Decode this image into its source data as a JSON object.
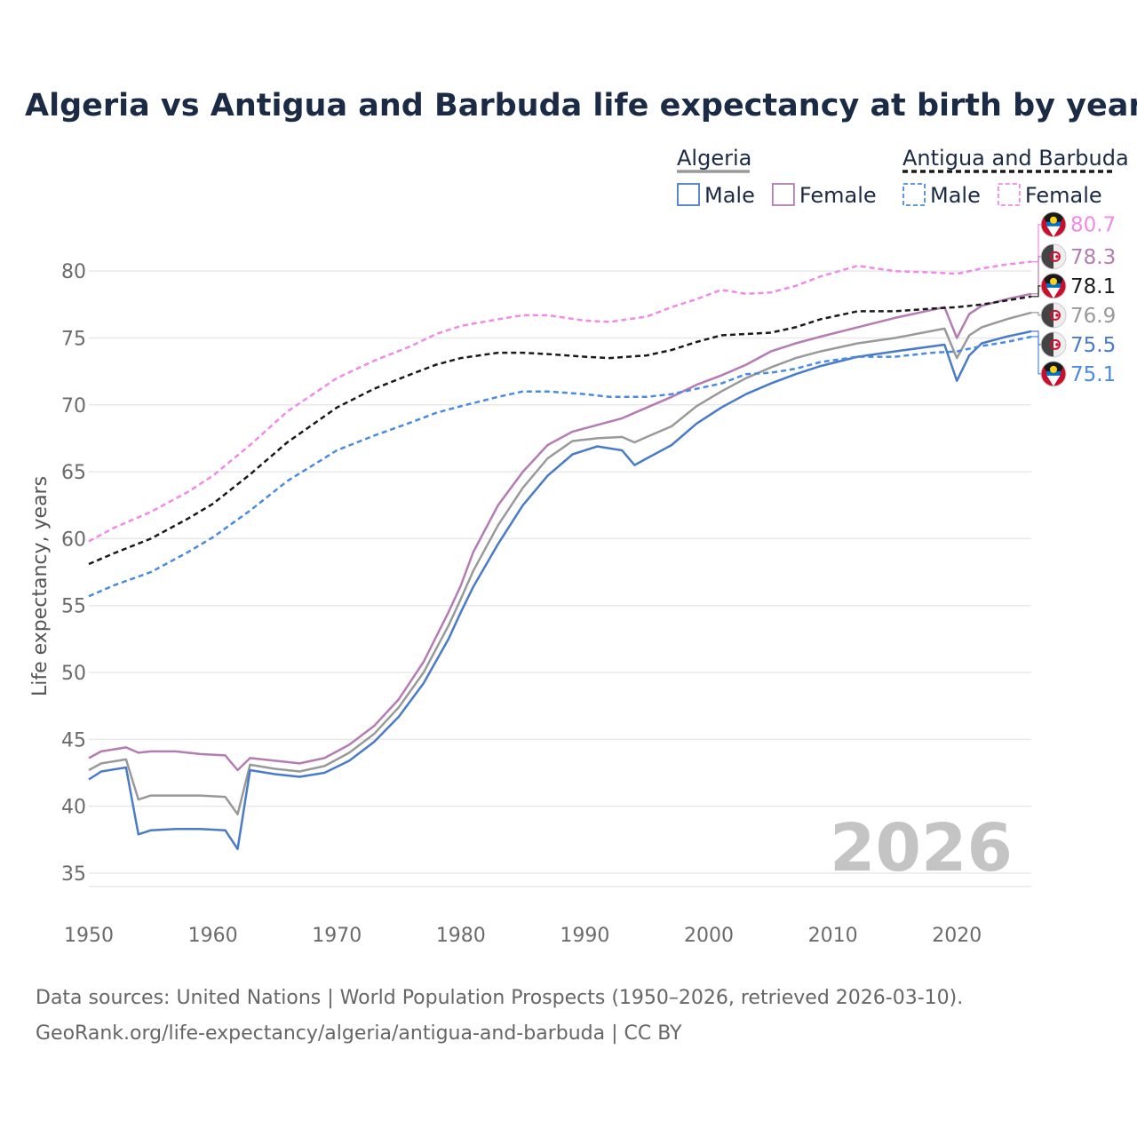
{
  "chart_data": {
    "type": "line",
    "title": "Algeria vs Antigua and Barbuda life expectancy at birth by year",
    "ylabel": "Life expectancy, years",
    "xlabel": "",
    "xlim": [
      1950,
      2026
    ],
    "ylim": [
      34,
      83
    ],
    "x_ticks": [
      1950,
      1960,
      1970,
      1980,
      1990,
      2000,
      2010,
      2020
    ],
    "y_ticks": [
      35,
      40,
      45,
      50,
      55,
      60,
      65,
      70,
      75,
      80
    ],
    "grid": true,
    "year_watermark": "2026",
    "legend": {
      "position": "top-right",
      "groups": [
        {
          "name": "Algeria",
          "color": "#999999",
          "dash": "solid",
          "items": [
            {
              "label": "Male",
              "color": "#4a7bc8",
              "dash": "solid"
            },
            {
              "label": "Female",
              "color": "#b57bb3",
              "dash": "solid"
            }
          ]
        },
        {
          "name": "Antigua and Barbuda",
          "color": "#1a1a1a",
          "dash": "dashed",
          "items": [
            {
              "label": "Male",
              "color": "#4a8ae0",
              "dash": "dashed"
            },
            {
              "label": "Female",
              "color": "#f08ae6",
              "dash": "dashed"
            }
          ]
        }
      ]
    },
    "series": [
      {
        "id": "ag-female",
        "name": "Antigua and Barbuda Female",
        "color": "#f08ae6",
        "dash": "dashed",
        "end_label": "80.7",
        "flag": "antigua",
        "points": [
          [
            1950,
            59.8
          ],
          [
            1952,
            60.8
          ],
          [
            1955,
            62.0
          ],
          [
            1958,
            63.5
          ],
          [
            1960,
            64.7
          ],
          [
            1963,
            67.0
          ],
          [
            1966,
            69.5
          ],
          [
            1970,
            72.0
          ],
          [
            1973,
            73.3
          ],
          [
            1976,
            74.4
          ],
          [
            1978,
            75.3
          ],
          [
            1980,
            75.9
          ],
          [
            1983,
            76.4
          ],
          [
            1985,
            76.7
          ],
          [
            1987,
            76.7
          ],
          [
            1990,
            76.3
          ],
          [
            1992,
            76.2
          ],
          [
            1995,
            76.6
          ],
          [
            1997,
            77.3
          ],
          [
            1999,
            77.9
          ],
          [
            2001,
            78.6
          ],
          [
            2003,
            78.3
          ],
          [
            2005,
            78.4
          ],
          [
            2007,
            78.9
          ],
          [
            2009,
            79.6
          ],
          [
            2012,
            80.4
          ],
          [
            2015,
            80.0
          ],
          [
            2018,
            79.9
          ],
          [
            2020,
            79.8
          ],
          [
            2022,
            80.2
          ],
          [
            2024,
            80.5
          ],
          [
            2026,
            80.7
          ]
        ]
      },
      {
        "id": "dz-female",
        "name": "Algeria Female",
        "color": "#b57bb3",
        "dash": "solid",
        "end_label": "78.3",
        "flag": "algeria",
        "points": [
          [
            1950,
            43.6
          ],
          [
            1951,
            44.1
          ],
          [
            1953,
            44.4
          ],
          [
            1954,
            44.0
          ],
          [
            1955,
            44.1
          ],
          [
            1957,
            44.1
          ],
          [
            1959,
            43.9
          ],
          [
            1961,
            43.8
          ],
          [
            1962,
            42.7
          ],
          [
            1963,
            43.6
          ],
          [
            1965,
            43.4
          ],
          [
            1967,
            43.2
          ],
          [
            1969,
            43.6
          ],
          [
            1971,
            44.6
          ],
          [
            1973,
            46.0
          ],
          [
            1975,
            48.0
          ],
          [
            1977,
            50.8
          ],
          [
            1979,
            54.5
          ],
          [
            1980,
            56.5
          ],
          [
            1981,
            59.0
          ],
          [
            1983,
            62.5
          ],
          [
            1985,
            65.0
          ],
          [
            1987,
            67.0
          ],
          [
            1989,
            68.0
          ],
          [
            1991,
            68.5
          ],
          [
            1993,
            69.0
          ],
          [
            1995,
            69.8
          ],
          [
            1997,
            70.6
          ],
          [
            1999,
            71.5
          ],
          [
            2001,
            72.2
          ],
          [
            2003,
            73.0
          ],
          [
            2005,
            74.0
          ],
          [
            2007,
            74.6
          ],
          [
            2009,
            75.1
          ],
          [
            2012,
            75.8
          ],
          [
            2015,
            76.5
          ],
          [
            2019,
            77.3
          ],
          [
            2020,
            75.0
          ],
          [
            2021,
            76.8
          ],
          [
            2022,
            77.4
          ],
          [
            2024,
            77.9
          ],
          [
            2026,
            78.3
          ]
        ]
      },
      {
        "id": "ag-total",
        "name": "Antigua and Barbuda Total",
        "color": "#1a1a1a",
        "dash": "dashed",
        "end_label": "78.1",
        "flag": "antigua",
        "points": [
          [
            1950,
            58.1
          ],
          [
            1952,
            58.9
          ],
          [
            1955,
            60.0
          ],
          [
            1958,
            61.5
          ],
          [
            1960,
            62.6
          ],
          [
            1963,
            64.8
          ],
          [
            1966,
            67.2
          ],
          [
            1970,
            69.8
          ],
          [
            1973,
            71.2
          ],
          [
            1976,
            72.3
          ],
          [
            1978,
            73.0
          ],
          [
            1980,
            73.5
          ],
          [
            1983,
            73.9
          ],
          [
            1985,
            73.9
          ],
          [
            1987,
            73.8
          ],
          [
            1990,
            73.6
          ],
          [
            1992,
            73.5
          ],
          [
            1995,
            73.7
          ],
          [
            1997,
            74.1
          ],
          [
            1999,
            74.7
          ],
          [
            2001,
            75.2
          ],
          [
            2003,
            75.3
          ],
          [
            2005,
            75.4
          ],
          [
            2007,
            75.8
          ],
          [
            2009,
            76.4
          ],
          [
            2012,
            77.0
          ],
          [
            2015,
            77.0
          ],
          [
            2018,
            77.2
          ],
          [
            2020,
            77.3
          ],
          [
            2022,
            77.5
          ],
          [
            2024,
            77.8
          ],
          [
            2026,
            78.1
          ]
        ]
      },
      {
        "id": "dz-total",
        "name": "Algeria Total",
        "color": "#999999",
        "dash": "solid",
        "end_label": "76.9",
        "flag": "algeria",
        "points": [
          [
            1950,
            42.7
          ],
          [
            1951,
            43.2
          ],
          [
            1953,
            43.5
          ],
          [
            1954,
            40.5
          ],
          [
            1955,
            40.8
          ],
          [
            1957,
            40.8
          ],
          [
            1959,
            40.8
          ],
          [
            1961,
            40.7
          ],
          [
            1962,
            39.4
          ],
          [
            1963,
            43.1
          ],
          [
            1965,
            42.8
          ],
          [
            1967,
            42.6
          ],
          [
            1969,
            43.0
          ],
          [
            1971,
            44.0
          ],
          [
            1973,
            45.4
          ],
          [
            1975,
            47.4
          ],
          [
            1977,
            50.0
          ],
          [
            1979,
            53.5
          ],
          [
            1980,
            55.5
          ],
          [
            1981,
            57.6
          ],
          [
            1983,
            61.0
          ],
          [
            1985,
            63.8
          ],
          [
            1987,
            66.0
          ],
          [
            1989,
            67.3
          ],
          [
            1991,
            67.5
          ],
          [
            1993,
            67.6
          ],
          [
            1994,
            67.2
          ],
          [
            1995,
            67.6
          ],
          [
            1997,
            68.4
          ],
          [
            1999,
            69.9
          ],
          [
            2001,
            71.0
          ],
          [
            2003,
            72.0
          ],
          [
            2005,
            72.8
          ],
          [
            2007,
            73.5
          ],
          [
            2009,
            74.0
          ],
          [
            2012,
            74.6
          ],
          [
            2015,
            75.0
          ],
          [
            2019,
            75.7
          ],
          [
            2020,
            73.5
          ],
          [
            2021,
            75.2
          ],
          [
            2022,
            75.8
          ],
          [
            2024,
            76.4
          ],
          [
            2026,
            76.9
          ]
        ]
      },
      {
        "id": "dz-male",
        "name": "Algeria Male",
        "color": "#4a7bc8",
        "dash": "solid",
        "end_label": "75.5",
        "flag": "algeria",
        "points": [
          [
            1950,
            42.0
          ],
          [
            1951,
            42.6
          ],
          [
            1953,
            42.9
          ],
          [
            1954,
            37.9
          ],
          [
            1955,
            38.2
          ],
          [
            1957,
            38.3
          ],
          [
            1959,
            38.3
          ],
          [
            1961,
            38.2
          ],
          [
            1962,
            36.8
          ],
          [
            1963,
            42.7
          ],
          [
            1965,
            42.4
          ],
          [
            1967,
            42.2
          ],
          [
            1969,
            42.5
          ],
          [
            1971,
            43.4
          ],
          [
            1973,
            44.8
          ],
          [
            1975,
            46.7
          ],
          [
            1977,
            49.2
          ],
          [
            1979,
            52.5
          ],
          [
            1980,
            54.5
          ],
          [
            1981,
            56.4
          ],
          [
            1983,
            59.6
          ],
          [
            1985,
            62.5
          ],
          [
            1987,
            64.7
          ],
          [
            1989,
            66.3
          ],
          [
            1991,
            66.9
          ],
          [
            1993,
            66.6
          ],
          [
            1994,
            65.5
          ],
          [
            1995,
            66.0
          ],
          [
            1997,
            67.0
          ],
          [
            1999,
            68.6
          ],
          [
            2001,
            69.8
          ],
          [
            2003,
            70.8
          ],
          [
            2005,
            71.6
          ],
          [
            2007,
            72.3
          ],
          [
            2009,
            72.9
          ],
          [
            2012,
            73.6
          ],
          [
            2015,
            74.0
          ],
          [
            2019,
            74.5
          ],
          [
            2020,
            71.8
          ],
          [
            2021,
            73.7
          ],
          [
            2022,
            74.6
          ],
          [
            2024,
            75.1
          ],
          [
            2026,
            75.5
          ]
        ]
      },
      {
        "id": "ag-male",
        "name": "Antigua and Barbuda Male",
        "color": "#4a8ae0",
        "dash": "dashed",
        "end_label": "75.1",
        "flag": "antigua",
        "points": [
          [
            1950,
            55.7
          ],
          [
            1952,
            56.5
          ],
          [
            1955,
            57.5
          ],
          [
            1958,
            59.0
          ],
          [
            1960,
            60.1
          ],
          [
            1963,
            62.1
          ],
          [
            1966,
            64.3
          ],
          [
            1970,
            66.6
          ],
          [
            1973,
            67.7
          ],
          [
            1976,
            68.7
          ],
          [
            1978,
            69.4
          ],
          [
            1980,
            69.9
          ],
          [
            1983,
            70.6
          ],
          [
            1985,
            71.0
          ],
          [
            1987,
            71.0
          ],
          [
            1990,
            70.8
          ],
          [
            1992,
            70.6
          ],
          [
            1995,
            70.6
          ],
          [
            1997,
            70.8
          ],
          [
            1999,
            71.2
          ],
          [
            2001,
            71.6
          ],
          [
            2003,
            72.3
          ],
          [
            2005,
            72.4
          ],
          [
            2007,
            72.7
          ],
          [
            2009,
            73.2
          ],
          [
            2012,
            73.6
          ],
          [
            2015,
            73.6
          ],
          [
            2018,
            73.9
          ],
          [
            2020,
            74.0
          ],
          [
            2022,
            74.4
          ],
          [
            2024,
            74.7
          ],
          [
            2026,
            75.1
          ]
        ]
      }
    ]
  },
  "source": {
    "line1": "Data sources: United Nations | World Population Prospects (1950–2026, retrieved 2026-03-10).",
    "line2": "GeoRank.org/life-expectancy/algeria/antigua-and-barbuda | CC BY"
  }
}
